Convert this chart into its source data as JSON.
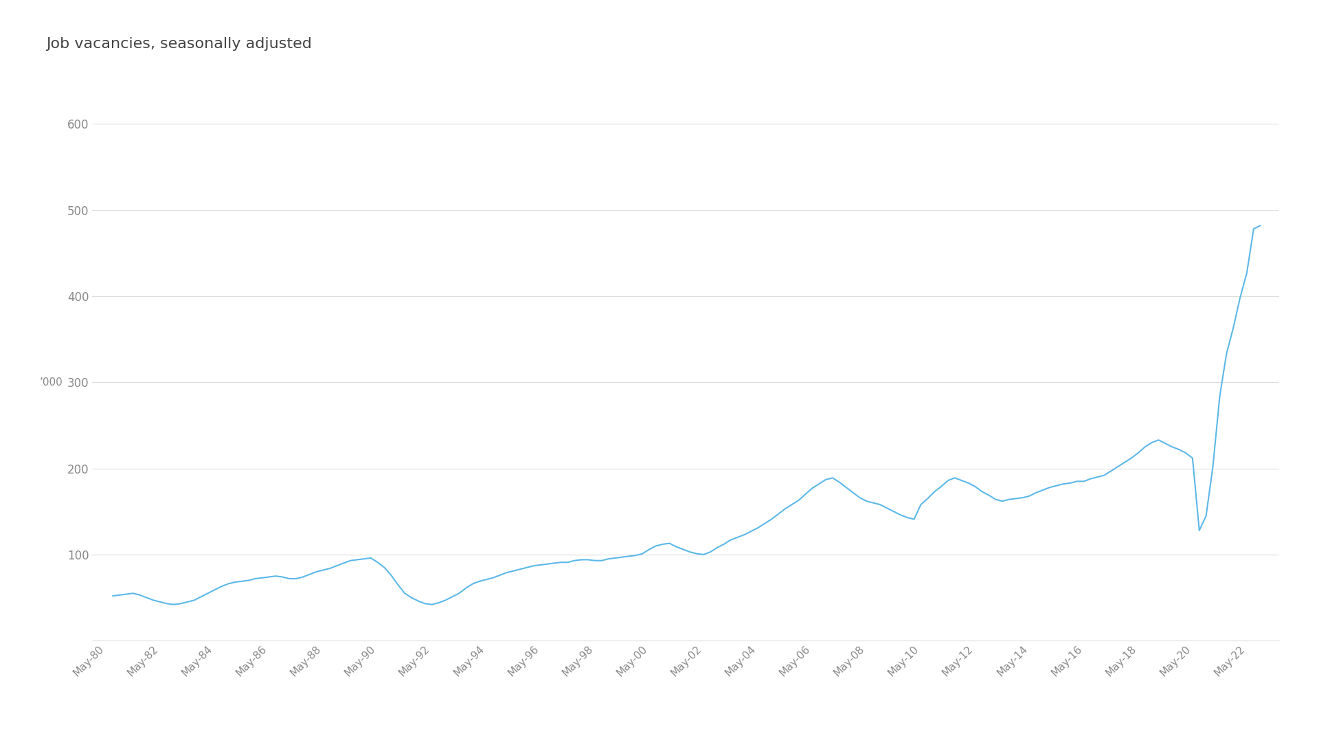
{
  "title": "Job vacancies, seasonally adjusted",
  "ylabel": "’000",
  "line_color": "#5bb8e8",
  "background_color": "#ffffff",
  "grid_color": "#dddddd",
  "title_color": "#444444",
  "tick_color": "#888888",
  "axis_color": "#cccccc",
  "ylim": [
    0,
    640
  ],
  "yticks": [
    100,
    200,
    300,
    400,
    500,
    600
  ],
  "x_labels": [
    "May-80",
    "May-82",
    "May-84",
    "May-86",
    "May-88",
    "May-90",
    "May-92",
    "May-94",
    "May-96",
    "May-98",
    "May-00",
    "May-02",
    "May-04",
    "May-06",
    "May-08",
    "May-10",
    "May-12",
    "May-14",
    "May-16",
    "May-18",
    "May-20",
    "May-22"
  ],
  "x_years": [
    1980,
    1982,
    1984,
    1986,
    1988,
    1990,
    1992,
    1994,
    1996,
    1998,
    2000,
    2002,
    2004,
    2006,
    2008,
    2010,
    2012,
    2014,
    2016,
    2018,
    2020,
    2022
  ],
  "data_x": [
    1980.25,
    1980.5,
    1980.75,
    1981.0,
    1981.25,
    1981.5,
    1981.75,
    1982.0,
    1982.25,
    1982.5,
    1982.75,
    1983.0,
    1983.25,
    1983.5,
    1983.75,
    1984.0,
    1984.25,
    1984.5,
    1984.75,
    1985.0,
    1985.25,
    1985.5,
    1985.75,
    1986.0,
    1986.25,
    1986.5,
    1986.75,
    1987.0,
    1987.25,
    1987.5,
    1987.75,
    1988.0,
    1988.25,
    1988.5,
    1988.75,
    1989.0,
    1989.25,
    1989.5,
    1989.75,
    1990.0,
    1990.25,
    1990.5,
    1990.75,
    1991.0,
    1991.25,
    1991.5,
    1991.75,
    1992.0,
    1992.25,
    1992.5,
    1992.75,
    1993.0,
    1993.25,
    1993.5,
    1993.75,
    1994.0,
    1994.25,
    1994.5,
    1994.75,
    1995.0,
    1995.25,
    1995.5,
    1995.75,
    1996.0,
    1996.25,
    1996.5,
    1996.75,
    1997.0,
    1997.25,
    1997.5,
    1997.75,
    1998.0,
    1998.25,
    1998.5,
    1998.75,
    1999.0,
    1999.25,
    1999.5,
    1999.75,
    2000.0,
    2000.25,
    2000.5,
    2000.75,
    2001.0,
    2001.25,
    2001.5,
    2001.75,
    2002.0,
    2002.25,
    2002.5,
    2002.75,
    2003.0,
    2003.25,
    2003.5,
    2003.75,
    2004.0,
    2004.25,
    2004.5,
    2004.75,
    2005.0,
    2005.25,
    2005.5,
    2005.75,
    2006.0,
    2006.25,
    2006.5,
    2006.75,
    2007.0,
    2007.25,
    2007.5,
    2007.75,
    2008.0,
    2008.25,
    2008.5,
    2008.75,
    2009.0,
    2009.25,
    2009.5,
    2009.75,
    2010.0,
    2010.25,
    2010.5,
    2010.75,
    2011.0,
    2011.25,
    2011.5,
    2011.75,
    2012.0,
    2012.25,
    2012.5,
    2012.75,
    2013.0,
    2013.25,
    2013.5,
    2013.75,
    2014.0,
    2014.25,
    2014.5,
    2014.75,
    2015.0,
    2015.25,
    2015.5,
    2015.75,
    2016.0,
    2016.25,
    2016.5,
    2016.75,
    2017.0,
    2017.25,
    2017.5,
    2017.75,
    2018.0,
    2018.25,
    2018.5,
    2018.75,
    2019.0,
    2019.25,
    2019.5,
    2019.75,
    2020.0,
    2020.25,
    2020.5,
    2020.75,
    2021.0,
    2021.25,
    2021.5,
    2021.75,
    2022.0,
    2022.25,
    2022.5
  ],
  "data_y": [
    52,
    53,
    54,
    55,
    53,
    50,
    47,
    45,
    43,
    42,
    43,
    45,
    47,
    51,
    55,
    59,
    63,
    66,
    68,
    69,
    70,
    72,
    73,
    74,
    75,
    74,
    72,
    72,
    74,
    77,
    80,
    82,
    84,
    87,
    90,
    93,
    94,
    95,
    96,
    91,
    85,
    76,
    65,
    55,
    50,
    46,
    43,
    42,
    44,
    47,
    51,
    55,
    61,
    66,
    69,
    71,
    73,
    76,
    79,
    81,
    83,
    85,
    87,
    88,
    89,
    90,
    91,
    91,
    93,
    94,
    94,
    93,
    93,
    95,
    96,
    97,
    98,
    99,
    101,
    106,
    110,
    112,
    113,
    109,
    106,
    103,
    101,
    100,
    103,
    108,
    112,
    117,
    120,
    123,
    127,
    131,
    136,
    141,
    147,
    153,
    158,
    163,
    170,
    177,
    182,
    187,
    189,
    184,
    178,
    172,
    166,
    162,
    160,
    158,
    154,
    150,
    146,
    143,
    141,
    158,
    165,
    173,
    179,
    186,
    189,
    186,
    183,
    179,
    173,
    169,
    164,
    162,
    164,
    165,
    166,
    168,
    172,
    175,
    178,
    180,
    182,
    183,
    185,
    185,
    188,
    190,
    192,
    197,
    202,
    207,
    212,
    218,
    225,
    230,
    233,
    229,
    225,
    222,
    218,
    212,
    128,
    145,
    202,
    283,
    333,
    363,
    398,
    427,
    478,
    482
  ]
}
